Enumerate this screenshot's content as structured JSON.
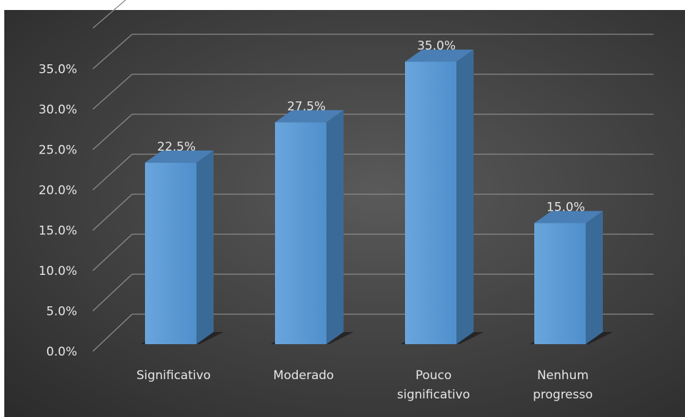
{
  "chart_data": {
    "type": "bar",
    "title": "",
    "xlabel": "",
    "ylabel": "",
    "categories": [
      [
        "Significativo"
      ],
      [
        "Moderado"
      ],
      [
        "Pouco",
        "significativo"
      ],
      [
        "Nenhum",
        "progresso"
      ]
    ],
    "values": [
      22.5,
      27.5,
      35.0,
      15.0
    ],
    "data_labels": [
      "22.5%",
      "27.5%",
      "35.0%",
      "15.0%"
    ],
    "yticks": [
      "0.0%",
      "5.0%",
      "10.0%",
      "15.0%",
      "20.0%",
      "25.0%",
      "30.0%",
      "35.0%"
    ],
    "ylim": [
      0,
      35
    ],
    "grid": true,
    "style": "3d-column",
    "colors": {
      "bar_front": "#5b9bd5",
      "bar_side": "#3a6a98",
      "bar_top": "#4a7fb5",
      "gridline": "#8a8a8a",
      "text": "#e6e6e6"
    }
  }
}
